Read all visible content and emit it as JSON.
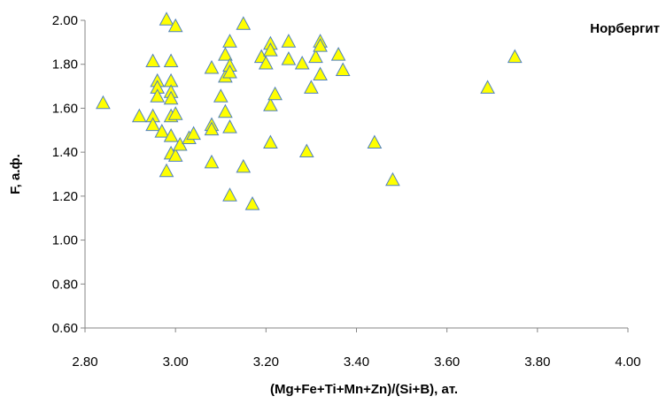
{
  "chart_data": {
    "type": "scatter",
    "title": "",
    "legend": "Норбергит",
    "legend_position": "top-right",
    "xlabel": "(Mg+Fe+Ti+Mn+Zn)/(Si+B), ат.",
    "ylabel": "F, а.ф.",
    "xlim": [
      2.8,
      4.0
    ],
    "ylim": [
      0.6,
      2.0
    ],
    "x_ticks": [
      "2.80",
      "3.00",
      "3.20",
      "3.40",
      "3.60",
      "3.80",
      "4.00"
    ],
    "y_ticks": [
      "0.60",
      "0.80",
      "1.00",
      "1.20",
      "1.40",
      "1.60",
      "1.80",
      "2.00"
    ],
    "grid": false,
    "marker": "triangle",
    "marker_color": "#ffff00",
    "marker_edge_color": "#4f81bd",
    "series": [
      {
        "name": "Норбергит",
        "points": [
          [
            2.84,
            1.62
          ],
          [
            2.92,
            1.56
          ],
          [
            2.95,
            1.56
          ],
          [
            2.95,
            1.52
          ],
          [
            2.95,
            1.81
          ],
          [
            2.96,
            1.72
          ],
          [
            2.96,
            1.69
          ],
          [
            2.96,
            1.65
          ],
          [
            2.97,
            1.49
          ],
          [
            2.98,
            1.31
          ],
          [
            2.98,
            2.0
          ],
          [
            2.99,
            1.47
          ],
          [
            2.99,
            1.39
          ],
          [
            2.99,
            1.72
          ],
          [
            2.99,
            1.67
          ],
          [
            2.99,
            1.64
          ],
          [
            2.99,
            1.56
          ],
          [
            2.99,
            1.81
          ],
          [
            3.0,
            1.97
          ],
          [
            3.0,
            1.57
          ],
          [
            3.0,
            1.38
          ],
          [
            3.01,
            1.43
          ],
          [
            3.03,
            1.46
          ],
          [
            3.04,
            1.48
          ],
          [
            3.08,
            1.78
          ],
          [
            3.08,
            1.52
          ],
          [
            3.08,
            1.5
          ],
          [
            3.08,
            1.35
          ],
          [
            3.1,
            1.65
          ],
          [
            3.11,
            1.84
          ],
          [
            3.11,
            1.74
          ],
          [
            3.11,
            1.58
          ],
          [
            3.12,
            1.9
          ],
          [
            3.12,
            1.79
          ],
          [
            3.12,
            1.76
          ],
          [
            3.12,
            1.51
          ],
          [
            3.12,
            1.2
          ],
          [
            3.15,
            1.98
          ],
          [
            3.15,
            1.33
          ],
          [
            3.17,
            1.16
          ],
          [
            3.19,
            1.83
          ],
          [
            3.2,
            1.8
          ],
          [
            3.21,
            1.89
          ],
          [
            3.21,
            1.86
          ],
          [
            3.21,
            1.61
          ],
          [
            3.21,
            1.44
          ],
          [
            3.22,
            1.66
          ],
          [
            3.25,
            1.9
          ],
          [
            3.25,
            1.82
          ],
          [
            3.28,
            1.8
          ],
          [
            3.29,
            1.4
          ],
          [
            3.3,
            1.69
          ],
          [
            3.31,
            1.83
          ],
          [
            3.32,
            1.9
          ],
          [
            3.32,
            1.88
          ],
          [
            3.32,
            1.75
          ],
          [
            3.36,
            1.84
          ],
          [
            3.37,
            1.77
          ],
          [
            3.44,
            1.44
          ],
          [
            3.48,
            1.27
          ],
          [
            3.69,
            1.69
          ],
          [
            3.75,
            1.83
          ]
        ]
      }
    ]
  }
}
